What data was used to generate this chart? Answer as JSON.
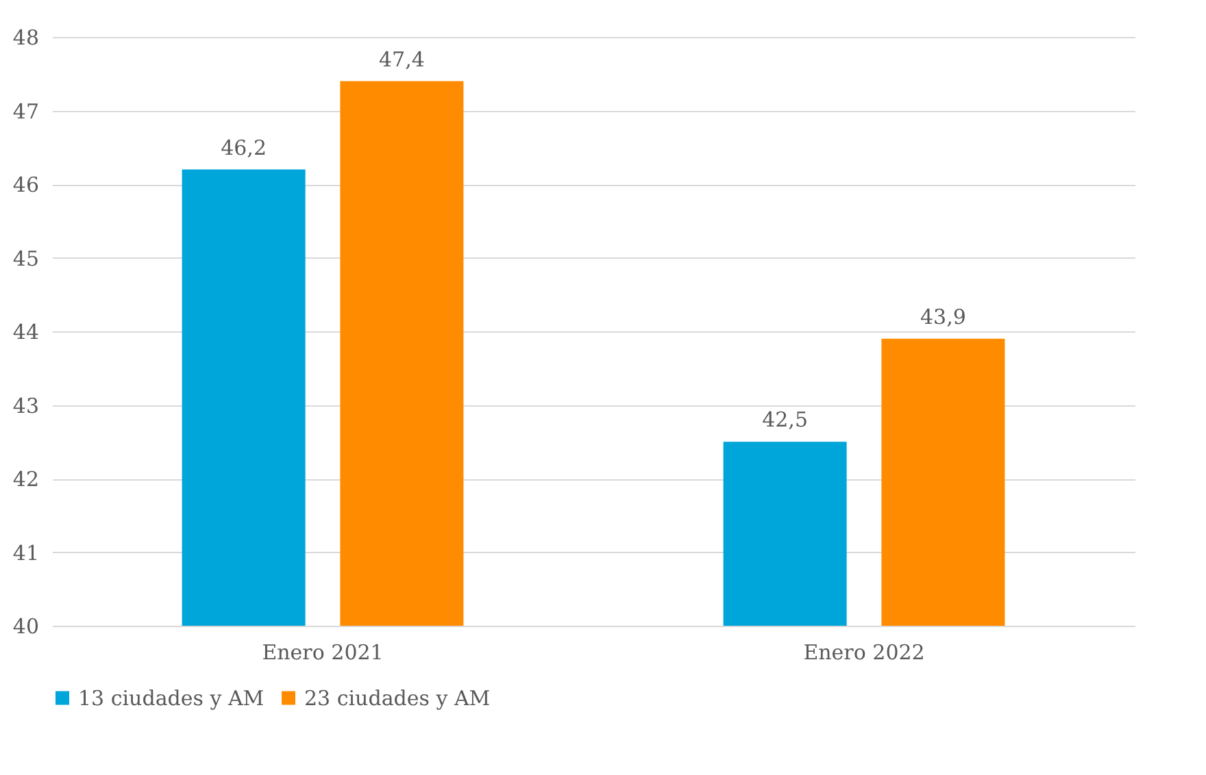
{
  "chart_data": {
    "type": "bar",
    "categories": [
      "Enero 2021",
      "Enero 2022"
    ],
    "series": [
      {
        "name": "13 ciudades y AM",
        "color": "#00a5da",
        "values": [
          46.2,
          42.5
        ],
        "value_labels": [
          "46,2",
          "42,5"
        ]
      },
      {
        "name": "23 ciudades y AM",
        "color": "#ff8c00",
        "values": [
          47.4,
          43.9
        ],
        "value_labels": [
          "47,4",
          "43,9"
        ]
      }
    ],
    "ylim": [
      40,
      48
    ],
    "yticks": [
      40,
      41,
      42,
      43,
      44,
      45,
      46,
      47,
      48
    ],
    "grid": "y",
    "legend": "bottom"
  }
}
